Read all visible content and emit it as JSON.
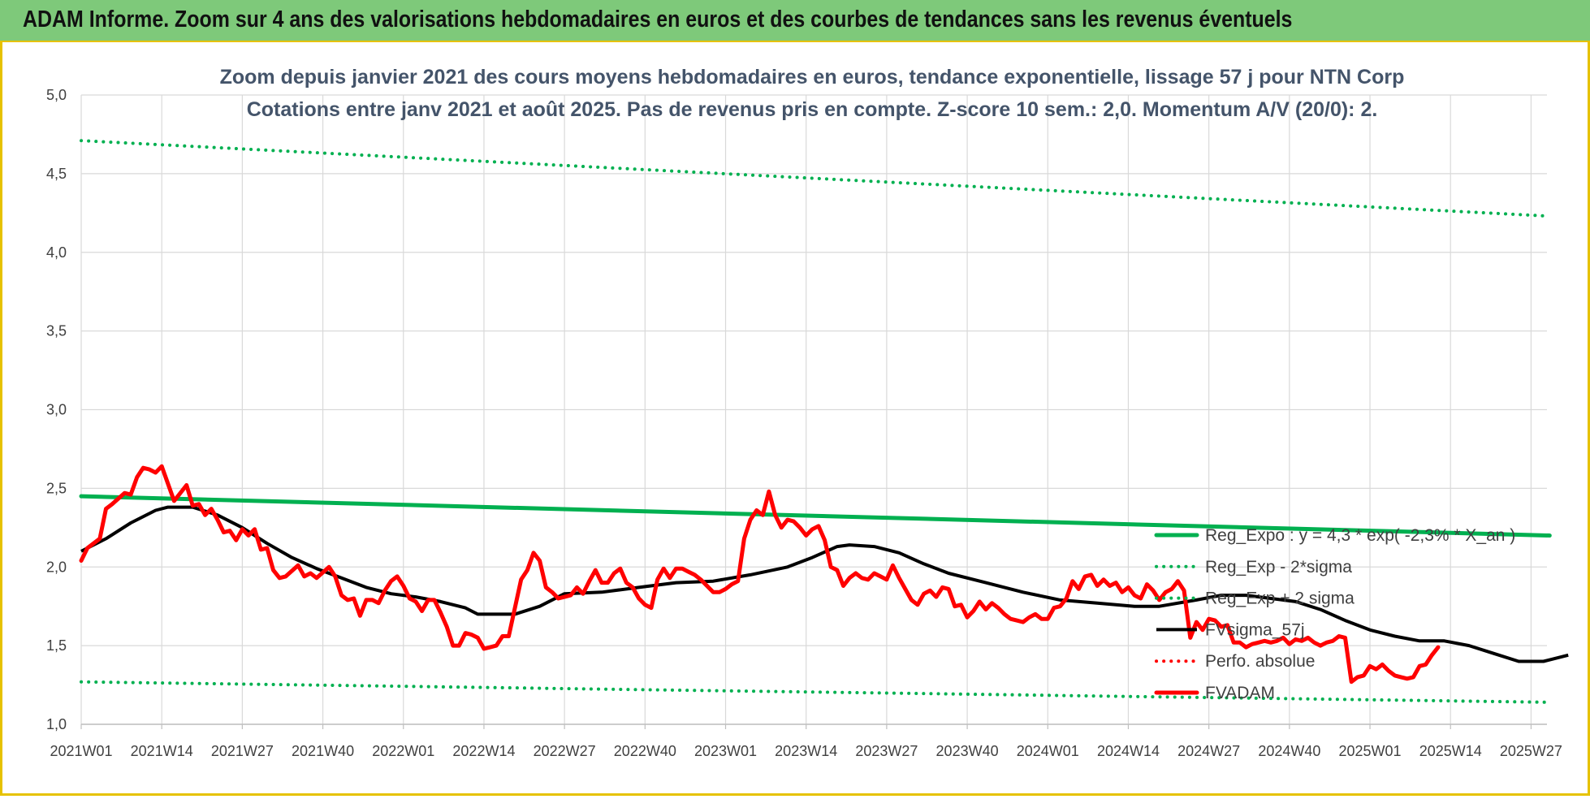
{
  "banner": {
    "title": "ADAM Informe. Zoom sur 4 ans des valorisations hebdomadaires en euros et des courbes de tendances sans les revenus éventuels"
  },
  "colors": {
    "banner": "#7ec97a",
    "trend": "#00b050",
    "smooth": "#000000",
    "price": "#ff0000"
  },
  "chart_data": {
    "type": "line",
    "title": "Zoom depuis janvier 2021 des cours moyens hebdomadaires en euros, tendance exponentielle, lissage 57 j pour NTN Corp",
    "subtitle": "Cotations entre janv 2021 et août 2025.  Pas de revenus pris en compte. Z-score 10 sem.: 2,0. Momentum A/V (20/0): 2.",
    "ylim": [
      1.0,
      5.0
    ],
    "y_ticks": [
      "1,0",
      "1,5",
      "2,0",
      "2,5",
      "3,0",
      "3,5",
      "4,0",
      "4,5",
      "5,0"
    ],
    "x_ticks": [
      "2021W01",
      "2021W14",
      "2021W27",
      "2021W40",
      "2022W01",
      "2022W14",
      "2022W27",
      "2022W40",
      "2023W01",
      "2023W14",
      "2023W27",
      "2023W40",
      "2024W01",
      "2024W14",
      "2024W27",
      "2024W40",
      "2025W01",
      "2025W14",
      "2025W27"
    ],
    "grid": true,
    "legend_position": "right",
    "series": [
      {
        "name": "Reg_Expo : y = 4,3 * exp( -2,3% * X_an )",
        "style": "solid-thick",
        "color": "#00b050",
        "points": [
          [
            0,
            2.45
          ],
          [
            237,
            2.2
          ]
        ]
      },
      {
        "name": "Reg_Exp - 2*sigma",
        "style": "dotted",
        "color": "#00b050",
        "points": [
          [
            0,
            1.27
          ],
          [
            237,
            1.14
          ]
        ]
      },
      {
        "name": "Reg_Exp + 2 sigma",
        "style": "dotted",
        "color": "#00b050",
        "points": [
          [
            0,
            4.71
          ],
          [
            237,
            4.23
          ]
        ]
      },
      {
        "name": "FVsigma_57j",
        "style": "solid",
        "color": "#000000",
        "points": [
          [
            0,
            2.1
          ],
          [
            4,
            2.18
          ],
          [
            8,
            2.28
          ],
          [
            12,
            2.36
          ],
          [
            14,
            2.38
          ],
          [
            18,
            2.38
          ],
          [
            22,
            2.33
          ],
          [
            26,
            2.25
          ],
          [
            30,
            2.15
          ],
          [
            34,
            2.06
          ],
          [
            38,
            1.99
          ],
          [
            42,
            1.93
          ],
          [
            46,
            1.87
          ],
          [
            50,
            1.83
          ],
          [
            54,
            1.81
          ],
          [
            58,
            1.78
          ],
          [
            62,
            1.74
          ],
          [
            64,
            1.7
          ],
          [
            70,
            1.7
          ],
          [
            74,
            1.75
          ],
          [
            78,
            1.83
          ],
          [
            84,
            1.84
          ],
          [
            90,
            1.87
          ],
          [
            96,
            1.9
          ],
          [
            102,
            1.91
          ],
          [
            108,
            1.95
          ],
          [
            114,
            2.0
          ],
          [
            118,
            2.06
          ],
          [
            122,
            2.13
          ],
          [
            124,
            2.14
          ],
          [
            128,
            2.13
          ],
          [
            132,
            2.09
          ],
          [
            136,
            2.02
          ],
          [
            140,
            1.96
          ],
          [
            146,
            1.9
          ],
          [
            152,
            1.84
          ],
          [
            158,
            1.79
          ],
          [
            164,
            1.77
          ],
          [
            170,
            1.75
          ],
          [
            174,
            1.75
          ],
          [
            180,
            1.79
          ],
          [
            184,
            1.82
          ],
          [
            188,
            1.82
          ],
          [
            192,
            1.8
          ],
          [
            196,
            1.78
          ],
          [
            200,
            1.73
          ],
          [
            204,
            1.66
          ],
          [
            208,
            1.6
          ],
          [
            212,
            1.56
          ],
          [
            216,
            1.53
          ],
          [
            220,
            1.53
          ],
          [
            224,
            1.5
          ],
          [
            228,
            1.45
          ],
          [
            232,
            1.4
          ],
          [
            236,
            1.4
          ],
          [
            240,
            1.44
          ]
        ]
      },
      {
        "name": "Perfo. absolue",
        "style": "dotted",
        "color": "#ff0000",
        "points": []
      },
      {
        "name": "FVADAM",
        "style": "solid-thick",
        "color": "#ff0000",
        "points": [
          [
            0,
            2.04
          ],
          [
            1,
            2.12
          ],
          [
            3,
            2.18
          ],
          [
            4,
            2.37
          ],
          [
            5,
            2.4
          ],
          [
            7,
            2.47
          ],
          [
            8,
            2.46
          ],
          [
            9,
            2.57
          ],
          [
            10,
            2.63
          ],
          [
            11,
            2.62
          ],
          [
            12,
            2.6
          ],
          [
            13,
            2.64
          ],
          [
            14,
            2.53
          ],
          [
            15,
            2.42
          ],
          [
            17,
            2.52
          ],
          [
            18,
            2.39
          ],
          [
            19,
            2.4
          ],
          [
            20,
            2.33
          ],
          [
            21,
            2.37
          ],
          [
            22,
            2.3
          ],
          [
            23,
            2.22
          ],
          [
            24,
            2.23
          ],
          [
            25,
            2.17
          ],
          [
            26,
            2.24
          ],
          [
            27,
            2.2
          ],
          [
            28,
            2.24
          ],
          [
            29,
            2.11
          ],
          [
            30,
            2.12
          ],
          [
            31,
            1.98
          ],
          [
            32,
            1.93
          ],
          [
            33,
            1.94
          ],
          [
            35,
            2.01
          ],
          [
            36,
            1.94
          ],
          [
            37,
            1.96
          ],
          [
            38,
            1.93
          ],
          [
            40,
            2.0
          ],
          [
            41,
            1.94
          ],
          [
            42,
            1.82
          ],
          [
            43,
            1.79
          ],
          [
            44,
            1.8
          ],
          [
            45,
            1.69
          ],
          [
            46,
            1.79
          ],
          [
            47,
            1.79
          ],
          [
            48,
            1.77
          ],
          [
            49,
            1.85
          ],
          [
            50,
            1.91
          ],
          [
            51,
            1.94
          ],
          [
            52,
            1.88
          ],
          [
            53,
            1.8
          ],
          [
            54,
            1.78
          ],
          [
            55,
            1.72
          ],
          [
            56,
            1.79
          ],
          [
            57,
            1.79
          ],
          [
            58,
            1.71
          ],
          [
            59,
            1.62
          ],
          [
            60,
            1.5
          ],
          [
            61,
            1.5
          ],
          [
            62,
            1.58
          ],
          [
            63,
            1.57
          ],
          [
            64,
            1.55
          ],
          [
            65,
            1.48
          ],
          [
            66,
            1.49
          ],
          [
            67,
            1.5
          ],
          [
            68,
            1.56
          ],
          [
            69,
            1.56
          ],
          [
            70,
            1.74
          ],
          [
            71,
            1.92
          ],
          [
            72,
            1.98
          ],
          [
            73,
            2.09
          ],
          [
            74,
            2.04
          ],
          [
            75,
            1.87
          ],
          [
            76,
            1.84
          ],
          [
            77,
            1.8
          ],
          [
            78,
            1.81
          ],
          [
            79,
            1.82
          ],
          [
            80,
            1.87
          ],
          [
            81,
            1.83
          ],
          [
            82,
            1.91
          ],
          [
            83,
            1.98
          ],
          [
            84,
            1.9
          ],
          [
            85,
            1.9
          ],
          [
            86,
            1.96
          ],
          [
            87,
            1.99
          ],
          [
            88,
            1.9
          ],
          [
            89,
            1.87
          ],
          [
            90,
            1.8
          ],
          [
            91,
            1.76
          ],
          [
            92,
            1.74
          ],
          [
            93,
            1.92
          ],
          [
            94,
            1.99
          ],
          [
            95,
            1.93
          ],
          [
            96,
            1.99
          ],
          [
            97,
            1.99
          ],
          [
            98,
            1.97
          ],
          [
            99,
            1.95
          ],
          [
            100,
            1.92
          ],
          [
            101,
            1.88
          ],
          [
            102,
            1.84
          ],
          [
            103,
            1.84
          ],
          [
            104,
            1.86
          ],
          [
            105,
            1.89
          ],
          [
            106,
            1.91
          ],
          [
            107,
            2.18
          ],
          [
            108,
            2.3
          ],
          [
            109,
            2.36
          ],
          [
            110,
            2.33
          ],
          [
            111,
            2.48
          ],
          [
            112,
            2.33
          ],
          [
            113,
            2.25
          ],
          [
            114,
            2.3
          ],
          [
            115,
            2.29
          ],
          [
            116,
            2.25
          ],
          [
            117,
            2.2
          ],
          [
            118,
            2.24
          ],
          [
            119,
            2.26
          ],
          [
            120,
            2.17
          ],
          [
            121,
            2.0
          ],
          [
            122,
            1.98
          ],
          [
            123,
            1.88
          ],
          [
            124,
            1.93
          ],
          [
            125,
            1.96
          ],
          [
            126,
            1.93
          ],
          [
            127,
            1.92
          ],
          [
            128,
            1.96
          ],
          [
            129,
            1.94
          ],
          [
            130,
            1.92
          ],
          [
            131,
            2.01
          ],
          [
            132,
            1.93
          ],
          [
            133,
            1.86
          ],
          [
            134,
            1.79
          ],
          [
            135,
            1.76
          ],
          [
            136,
            1.83
          ],
          [
            137,
            1.85
          ],
          [
            138,
            1.81
          ],
          [
            139,
            1.87
          ],
          [
            140,
            1.86
          ],
          [
            141,
            1.75
          ],
          [
            142,
            1.76
          ],
          [
            143,
            1.68
          ],
          [
            144,
            1.72
          ],
          [
            145,
            1.78
          ],
          [
            146,
            1.73
          ],
          [
            147,
            1.77
          ],
          [
            148,
            1.74
          ],
          [
            149,
            1.7
          ],
          [
            150,
            1.67
          ],
          [
            151,
            1.66
          ],
          [
            152,
            1.65
          ],
          [
            153,
            1.68
          ],
          [
            154,
            1.7
          ],
          [
            155,
            1.67
          ],
          [
            156,
            1.67
          ],
          [
            157,
            1.74
          ],
          [
            158,
            1.75
          ],
          [
            159,
            1.8
          ],
          [
            160,
            1.91
          ],
          [
            161,
            1.86
          ],
          [
            162,
            1.94
          ],
          [
            163,
            1.95
          ],
          [
            164,
            1.88
          ],
          [
            165,
            1.92
          ],
          [
            166,
            1.88
          ],
          [
            167,
            1.9
          ],
          [
            168,
            1.84
          ],
          [
            169,
            1.87
          ],
          [
            170,
            1.82
          ],
          [
            171,
            1.8
          ],
          [
            172,
            1.89
          ],
          [
            173,
            1.85
          ],
          [
            174,
            1.79
          ],
          [
            175,
            1.84
          ],
          [
            176,
            1.86
          ],
          [
            177,
            1.91
          ],
          [
            178,
            1.85
          ],
          [
            179,
            1.55
          ],
          [
            180,
            1.65
          ],
          [
            181,
            1.6
          ],
          [
            182,
            1.67
          ],
          [
            183,
            1.66
          ],
          [
            184,
            1.62
          ],
          [
            185,
            1.63
          ],
          [
            186,
            1.52
          ],
          [
            187,
            1.52
          ],
          [
            188,
            1.49
          ],
          [
            189,
            1.51
          ],
          [
            190,
            1.52
          ],
          [
            191,
            1.53
          ],
          [
            192,
            1.52
          ],
          [
            193,
            1.53
          ],
          [
            194,
            1.55
          ],
          [
            195,
            1.51
          ],
          [
            196,
            1.54
          ],
          [
            197,
            1.53
          ],
          [
            198,
            1.55
          ],
          [
            199,
            1.52
          ],
          [
            200,
            1.5
          ],
          [
            201,
            1.52
          ],
          [
            202,
            1.53
          ],
          [
            203,
            1.56
          ],
          [
            204,
            1.55
          ],
          [
            205,
            1.27
          ],
          [
            206,
            1.3
          ],
          [
            207,
            1.31
          ],
          [
            208,
            1.37
          ],
          [
            209,
            1.35
          ],
          [
            210,
            1.38
          ],
          [
            211,
            1.34
          ],
          [
            212,
            1.31
          ],
          [
            213,
            1.3
          ],
          [
            214,
            1.29
          ],
          [
            215,
            1.3
          ],
          [
            216,
            1.37
          ],
          [
            217,
            1.38
          ],
          [
            218,
            1.44
          ],
          [
            219,
            1.49
          ]
        ]
      }
    ]
  }
}
